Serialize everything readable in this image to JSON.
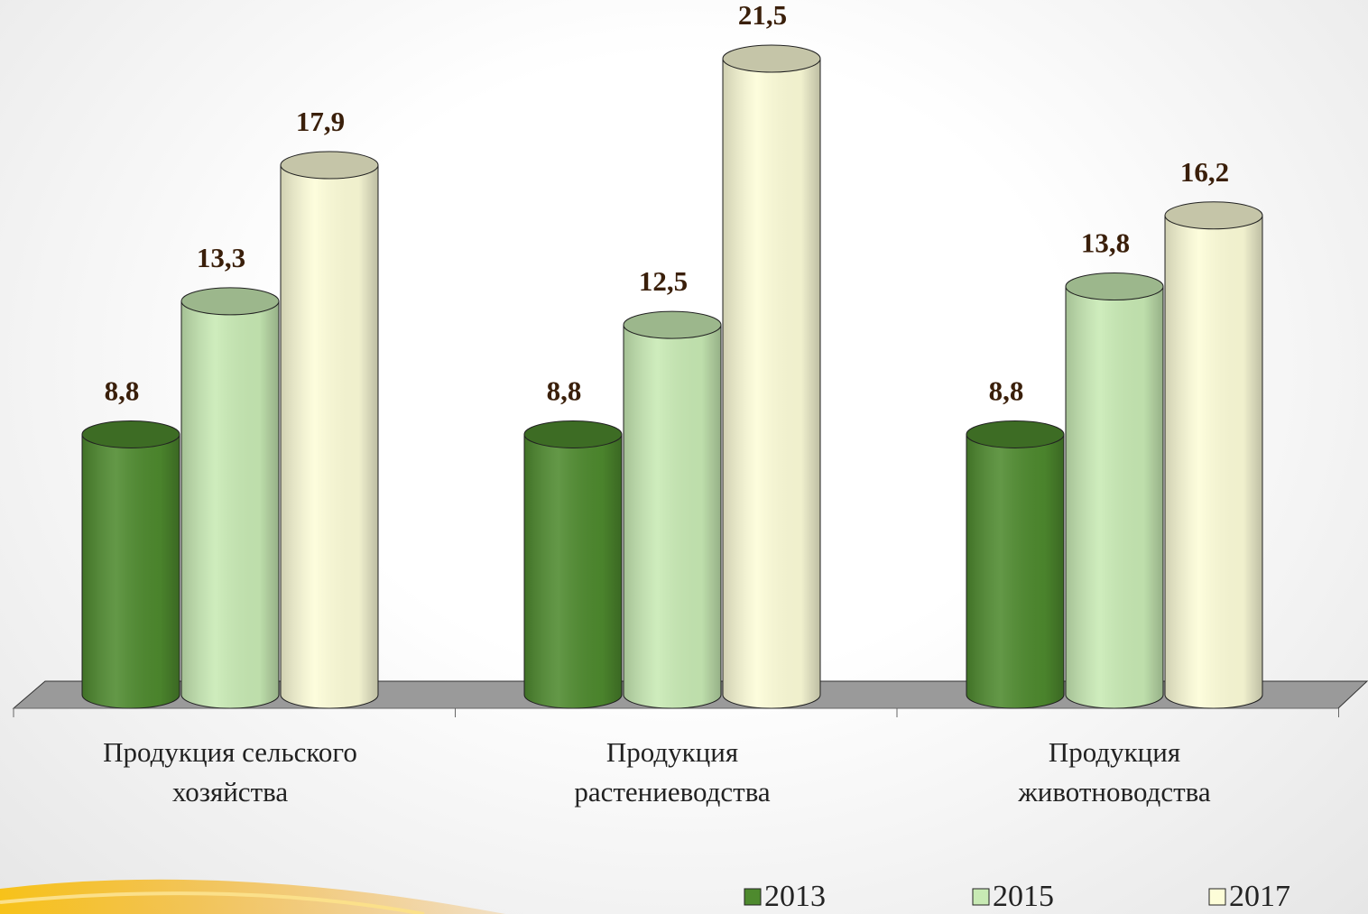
{
  "chart_data": {
    "type": "bar3d",
    "categories": [
      "Продукция сельского хозяйства",
      "Продукция растениеводства",
      "Продукция животноводства"
    ],
    "series": [
      {
        "name": "2013",
        "color": "#4e8a2e",
        "values": [
          8.8,
          8.8,
          8.8
        ],
        "value_labels": [
          "8,8",
          "8,8",
          "8,8"
        ]
      },
      {
        "name": "2015",
        "color": "#c8eab4",
        "values": [
          13.3,
          12.5,
          13.8
        ],
        "value_labels": [
          "13,3",
          "12,5",
          "13,8"
        ]
      },
      {
        "name": "2017",
        "color": "#fdfdd8",
        "values": [
          17.9,
          21.5,
          16.2
        ],
        "value_labels": [
          "17,9",
          "21,5",
          "16,2"
        ]
      }
    ],
    "legend": "bottom-right"
  }
}
